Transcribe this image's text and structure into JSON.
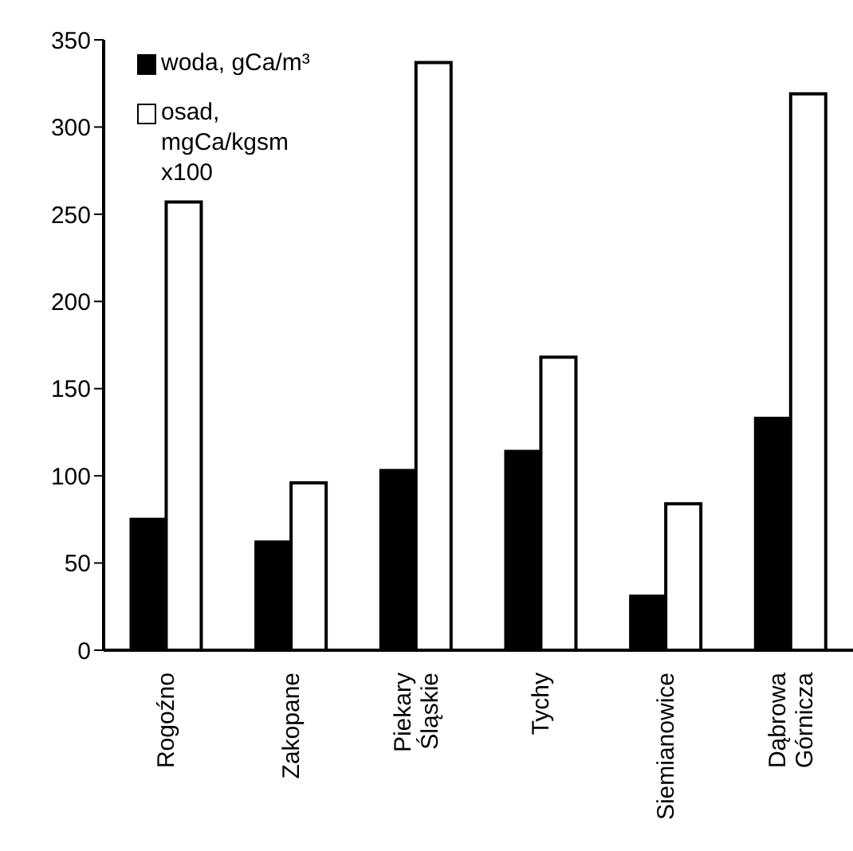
{
  "chart_data": {
    "type": "bar",
    "categories": [
      "Rogoźno",
      "Zakopane",
      "Piekary Śląskie",
      "Tychy",
      "Siemianowice",
      "Dąbrowa Górnicza"
    ],
    "series": [
      {
        "name": "woda, gCa/m³",
        "color": "#000000",
        "values": [
          75,
          62,
          103,
          114,
          31,
          133
        ]
      },
      {
        "name": "osad, mgCa/kgsm x100",
        "color": "#ffffff",
        "values": [
          257,
          96,
          337,
          168,
          84,
          319
        ]
      }
    ],
    "ylim": [
      0,
      350
    ],
    "yticks": [
      0,
      50,
      100,
      150,
      200,
      250,
      300,
      350
    ],
    "legend": "top left"
  }
}
